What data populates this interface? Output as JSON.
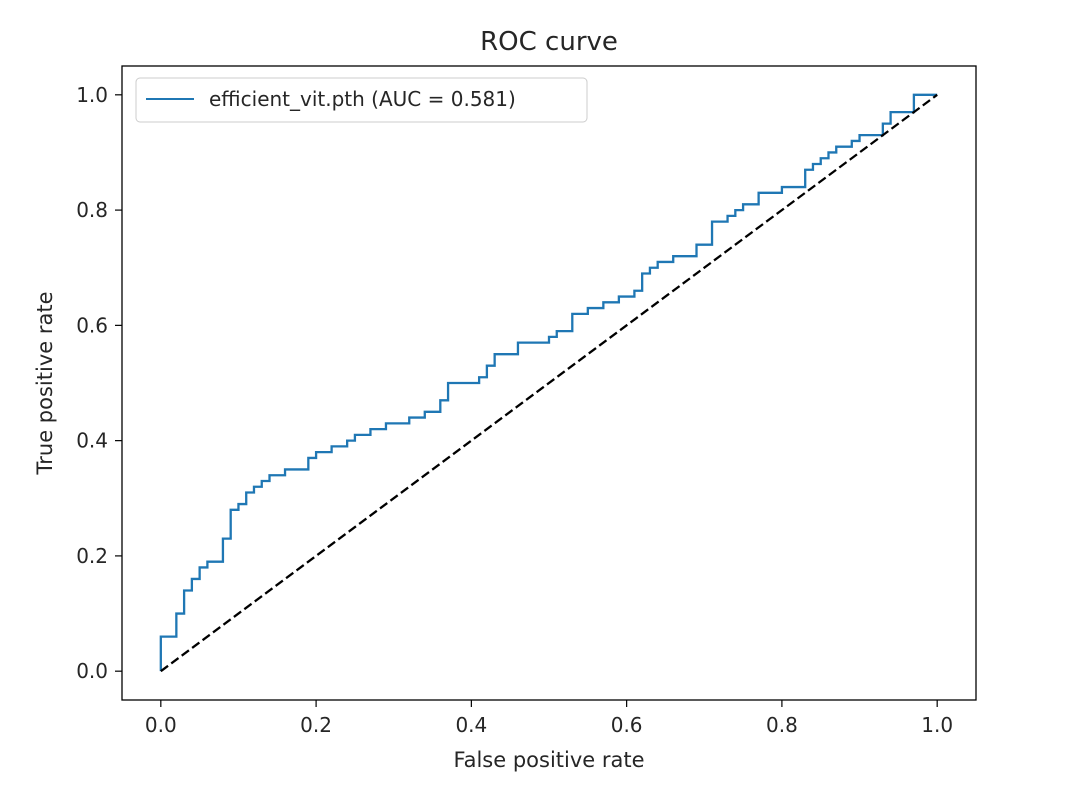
{
  "chart_data": {
    "type": "line",
    "title": "ROC curve",
    "xlabel": "False positive rate",
    "ylabel": "True positive rate",
    "xlim": [
      -0.05,
      1.05
    ],
    "ylim": [
      -0.05,
      1.05
    ],
    "xticks": [
      0.0,
      0.2,
      0.4,
      0.6,
      0.8,
      1.0
    ],
    "xtick_labels": [
      "0.0",
      "0.2",
      "0.4",
      "0.6",
      "0.8",
      "1.0"
    ],
    "yticks": [
      0.0,
      0.2,
      0.4,
      0.6,
      0.8,
      1.0
    ],
    "ytick_labels": [
      "0.0",
      "0.2",
      "0.4",
      "0.6",
      "0.8",
      "1.0"
    ],
    "grid": false,
    "legend_position": "upper left",
    "series": [
      {
        "name": "efficient_vit.pth (AUC = 0.581)",
        "color": "#1f77b4",
        "style": "solid",
        "x": [
          0.0,
          0.0,
          0.02,
          0.02,
          0.03,
          0.03,
          0.04,
          0.04,
          0.05,
          0.05,
          0.06,
          0.06,
          0.08,
          0.08,
          0.09,
          0.09,
          0.1,
          0.1,
          0.11,
          0.11,
          0.12,
          0.12,
          0.13,
          0.13,
          0.14,
          0.14,
          0.16,
          0.16,
          0.19,
          0.19,
          0.2,
          0.2,
          0.22,
          0.22,
          0.24,
          0.24,
          0.25,
          0.25,
          0.27,
          0.27,
          0.29,
          0.29,
          0.32,
          0.32,
          0.34,
          0.34,
          0.36,
          0.36,
          0.37,
          0.37,
          0.41,
          0.41,
          0.42,
          0.42,
          0.43,
          0.43,
          0.46,
          0.46,
          0.5,
          0.5,
          0.51,
          0.51,
          0.53,
          0.53,
          0.55,
          0.55,
          0.57,
          0.57,
          0.59,
          0.59,
          0.61,
          0.61,
          0.62,
          0.62,
          0.63,
          0.63,
          0.64,
          0.64,
          0.66,
          0.66,
          0.69,
          0.69,
          0.71,
          0.71,
          0.73,
          0.73,
          0.74,
          0.74,
          0.75,
          0.75,
          0.77,
          0.77,
          0.8,
          0.8,
          0.83,
          0.83,
          0.84,
          0.84,
          0.85,
          0.85,
          0.86,
          0.86,
          0.87,
          0.87,
          0.89,
          0.89,
          0.9,
          0.9,
          0.93,
          0.93,
          0.94,
          0.94,
          0.97,
          0.97,
          1.0,
          1.0
        ],
        "y": [
          0.0,
          0.06,
          0.06,
          0.1,
          0.1,
          0.14,
          0.14,
          0.16,
          0.16,
          0.18,
          0.18,
          0.19,
          0.19,
          0.23,
          0.23,
          0.28,
          0.28,
          0.29,
          0.29,
          0.31,
          0.31,
          0.32,
          0.32,
          0.33,
          0.33,
          0.34,
          0.34,
          0.35,
          0.35,
          0.37,
          0.37,
          0.38,
          0.38,
          0.39,
          0.39,
          0.4,
          0.4,
          0.41,
          0.41,
          0.42,
          0.42,
          0.43,
          0.43,
          0.44,
          0.44,
          0.45,
          0.45,
          0.47,
          0.47,
          0.5,
          0.5,
          0.51,
          0.51,
          0.53,
          0.53,
          0.55,
          0.55,
          0.57,
          0.57,
          0.58,
          0.58,
          0.59,
          0.59,
          0.62,
          0.62,
          0.63,
          0.63,
          0.64,
          0.64,
          0.65,
          0.65,
          0.66,
          0.66,
          0.69,
          0.69,
          0.7,
          0.7,
          0.71,
          0.71,
          0.72,
          0.72,
          0.74,
          0.74,
          0.78,
          0.78,
          0.79,
          0.79,
          0.8,
          0.8,
          0.81,
          0.81,
          0.83,
          0.83,
          0.84,
          0.84,
          0.87,
          0.87,
          0.88,
          0.88,
          0.89,
          0.89,
          0.9,
          0.9,
          0.91,
          0.91,
          0.92,
          0.92,
          0.93,
          0.93,
          0.95,
          0.95,
          0.97,
          0.97,
          1.0,
          1.0,
          1.0
        ]
      },
      {
        "color": "#000000",
        "style": "dashed",
        "x": [
          0.0,
          1.0
        ],
        "y": [
          0.0,
          1.0
        ]
      }
    ]
  }
}
